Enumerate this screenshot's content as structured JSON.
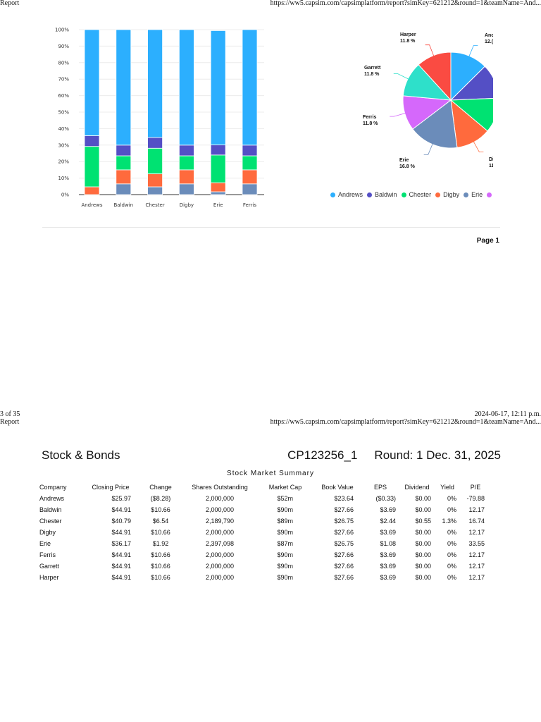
{
  "page1_header": {
    "left": "Report",
    "url": "https://ww5.capsim.com/capsimplatform/report?simKey=621212&round=1&teamName=And..."
  },
  "chart_data": [
    {
      "type": "bar",
      "stacked": true,
      "title": "",
      "categories": [
        "Andrews",
        "Baldwin",
        "Chester",
        "Digby",
        "Erie",
        "Ferris"
      ],
      "series": [
        {
          "name": "Erie",
          "color": "#6b8cba",
          "values": [
            0,
            6.5,
            4.7,
            6.5,
            1.7,
            6.5
          ]
        },
        {
          "name": "Digby",
          "color": "#ff6a3d",
          "values": [
            4.7,
            8.5,
            7.9,
            8.5,
            5.5,
            8.5
          ]
        },
        {
          "name": "Chester",
          "color": "#00e272",
          "values": [
            24.5,
            8.5,
            15.5,
            8.5,
            16.8,
            8.5
          ]
        },
        {
          "name": "Baldwin",
          "color": "#544fc5",
          "values": [
            6.5,
            6.5,
            6.5,
            6.5,
            6.1,
            6.5
          ]
        },
        {
          "name": "Andrews",
          "color": "#2caffe",
          "values": [
            64.3,
            70.0,
            65.4,
            70.0,
            69.3,
            70.0
          ]
        }
      ],
      "ytick_labels": [
        "0%",
        "10%",
        "20%",
        "30%",
        "40%",
        "50%",
        "60%",
        "70%",
        "80%",
        "90%",
        "100%"
      ],
      "ylim": [
        0,
        100
      ],
      "grid": true,
      "xlabel": "",
      "ylabel": ""
    },
    {
      "type": "pie",
      "title": "",
      "slices": [
        {
          "name": "Andrews",
          "label": "Anc",
          "pct_label": "12.(",
          "value": 12.6,
          "color": "#2caffe"
        },
        {
          "name": "Baldwin",
          "value": 11.8,
          "color": "#544fc5"
        },
        {
          "name": "Chester",
          "value": 11.8,
          "color": "#00e272"
        },
        {
          "name": "Digby",
          "label": "Di",
          "pct_label": "11",
          "value": 11.8,
          "color": "#ff6a3d"
        },
        {
          "name": "Erie",
          "label": "Erie",
          "pct_label": "16.8 %",
          "value": 16.8,
          "color": "#6b8cba"
        },
        {
          "name": "Ferris",
          "label": "Ferris",
          "pct_label": "11.8 %",
          "value": 11.8,
          "color": "#d568fb"
        },
        {
          "name": "Garrett",
          "label": "Garrett",
          "pct_label": "11.8 %",
          "value": 11.8,
          "color": "#2ee0ca"
        },
        {
          "name": "Harper",
          "label": "Harper",
          "pct_label": "11.8 %",
          "value": 11.8,
          "color": "#fa4b42"
        }
      ],
      "legend": [
        "Andrews",
        "Baldwin",
        "Chester",
        "Digby",
        "Erie",
        ""
      ],
      "legend_position": "bottom"
    }
  ],
  "legend": [
    {
      "label": "Andrews",
      "color": "#2caffe"
    },
    {
      "label": "Baldwin",
      "color": "#544fc5"
    },
    {
      "label": "Chester",
      "color": "#00e272"
    },
    {
      "label": "Digby",
      "color": "#ff6a3d"
    },
    {
      "label": "Erie",
      "color": "#6b8cba"
    },
    {
      "label": "",
      "color": "#d568fb"
    }
  ],
  "page1_footer": {
    "page_label": "Page 1"
  },
  "page2_header": {
    "page_count": "3 of 35",
    "timestamp": "2024-06-17, 12:11 p.m.",
    "left": "Report",
    "url": "https://ww5.capsim.com/capsimplatform/report?simKey=621212&round=1&teamName=And..."
  },
  "report": {
    "title": "Stock & Bonds",
    "code": "CP123256_1",
    "round": "Round: 1 Dec. 31, 2025",
    "section_title": "Stock Market Summary",
    "columns": [
      "Company",
      "Closing Price",
      "Change",
      "Shares Outstanding",
      "Market Cap",
      "Book Value",
      "EPS",
      "Dividend",
      "Yield",
      "P/E"
    ],
    "rows": [
      [
        "Andrews",
        "$25.97",
        "($8.28)",
        "2,000,000",
        "$52m",
        "$23.64",
        "($0.33)",
        "$0.00",
        "0%",
        "-79.88"
      ],
      [
        "Baldwin",
        "$44.91",
        "$10.66",
        "2,000,000",
        "$90m",
        "$27.66",
        "$3.69",
        "$0.00",
        "0%",
        "12.17"
      ],
      [
        "Chester",
        "$40.79",
        "$6.54",
        "2,189,790",
        "$89m",
        "$26.75",
        "$2.44",
        "$0.55",
        "1.3%",
        "16.74"
      ],
      [
        "Digby",
        "$44.91",
        "$10.66",
        "2,000,000",
        "$90m",
        "$27.66",
        "$3.69",
        "$0.00",
        "0%",
        "12.17"
      ],
      [
        "Erie",
        "$36.17",
        "$1.92",
        "2,397,098",
        "$87m",
        "$26.75",
        "$1.08",
        "$0.00",
        "0%",
        "33.55"
      ],
      [
        "Ferris",
        "$44.91",
        "$10.66",
        "2,000,000",
        "$90m",
        "$27.66",
        "$3.69",
        "$0.00",
        "0%",
        "12.17"
      ],
      [
        "Garrett",
        "$44.91",
        "$10.66",
        "2,000,000",
        "$90m",
        "$27.66",
        "$3.69",
        "$0.00",
        "0%",
        "12.17"
      ],
      [
        "Harper",
        "$44.91",
        "$10.66",
        "2,000,000",
        "$90m",
        "$27.66",
        "$3.69",
        "$0.00",
        "0%",
        "12.17"
      ]
    ]
  }
}
